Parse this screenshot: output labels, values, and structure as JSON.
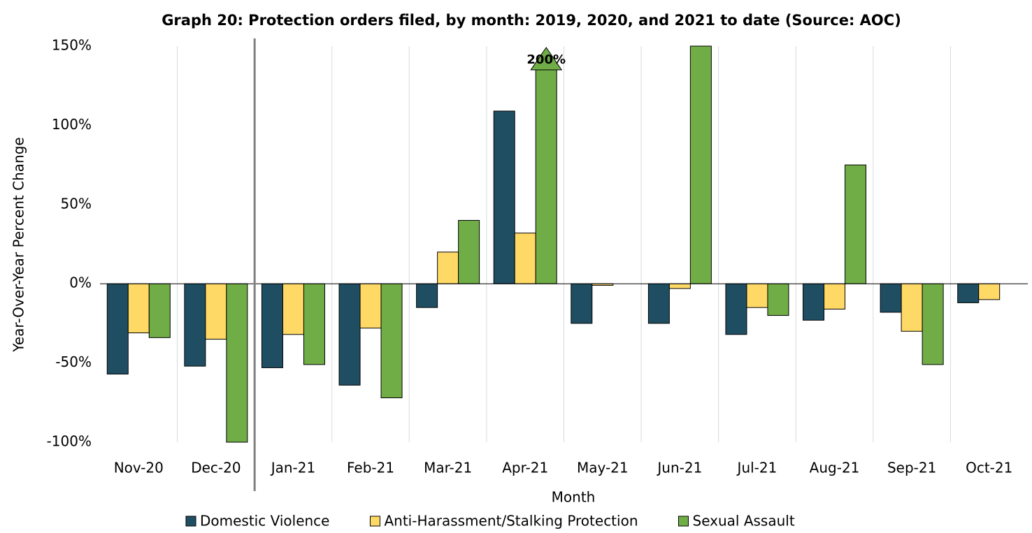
{
  "chart_data": {
    "type": "bar",
    "title": "Graph 20: Protection orders filed, by month: 2019, 2020, and 2021 to date (Source: AOC)",
    "x_label": "Month",
    "y_label": "Year-Over-Year Percent Change",
    "categories": [
      "Nov-20",
      "Dec-20",
      "Jan-21",
      "Feb-21",
      "Mar-21",
      "Apr-21",
      "May-21",
      "Jun-21",
      "Jul-21",
      "Aug-21",
      "Sep-21",
      "Oct-21"
    ],
    "series": [
      {
        "name": "Domestic Violence",
        "color": "#1f4e63",
        "values": [
          -57,
          -52,
          -53,
          -64,
          -15,
          109,
          -25,
          -25,
          -32,
          -23,
          -18,
          -12
        ]
      },
      {
        "name": "Anti-Harassment/Stalking Protection",
        "color": "#ffd966",
        "values": [
          -31,
          -35,
          -32,
          -28,
          20,
          32,
          -1,
          -3,
          -15,
          -16,
          -30,
          -10
        ]
      },
      {
        "name": "Sexual Assault",
        "color": "#70ad47",
        "values": [
          -34,
          -100,
          -51,
          -72,
          40,
          200,
          0,
          150,
          -20,
          75,
          -51,
          0
        ],
        "value_labels": [
          null,
          null,
          null,
          null,
          null,
          "200%",
          null,
          null,
          null,
          null,
          null,
          null
        ]
      }
    ],
    "ylim": [
      -100,
      150
    ],
    "yticks": [
      {
        "value": -100,
        "label": "-100%"
      },
      {
        "value": -50,
        "label": "-50%"
      },
      {
        "value": 0,
        "label": "0%"
      },
      {
        "value": 50,
        "label": "50%"
      },
      {
        "value": 100,
        "label": "100%"
      },
      {
        "value": 150,
        "label": "150%"
      }
    ],
    "legend": "bottom"
  }
}
